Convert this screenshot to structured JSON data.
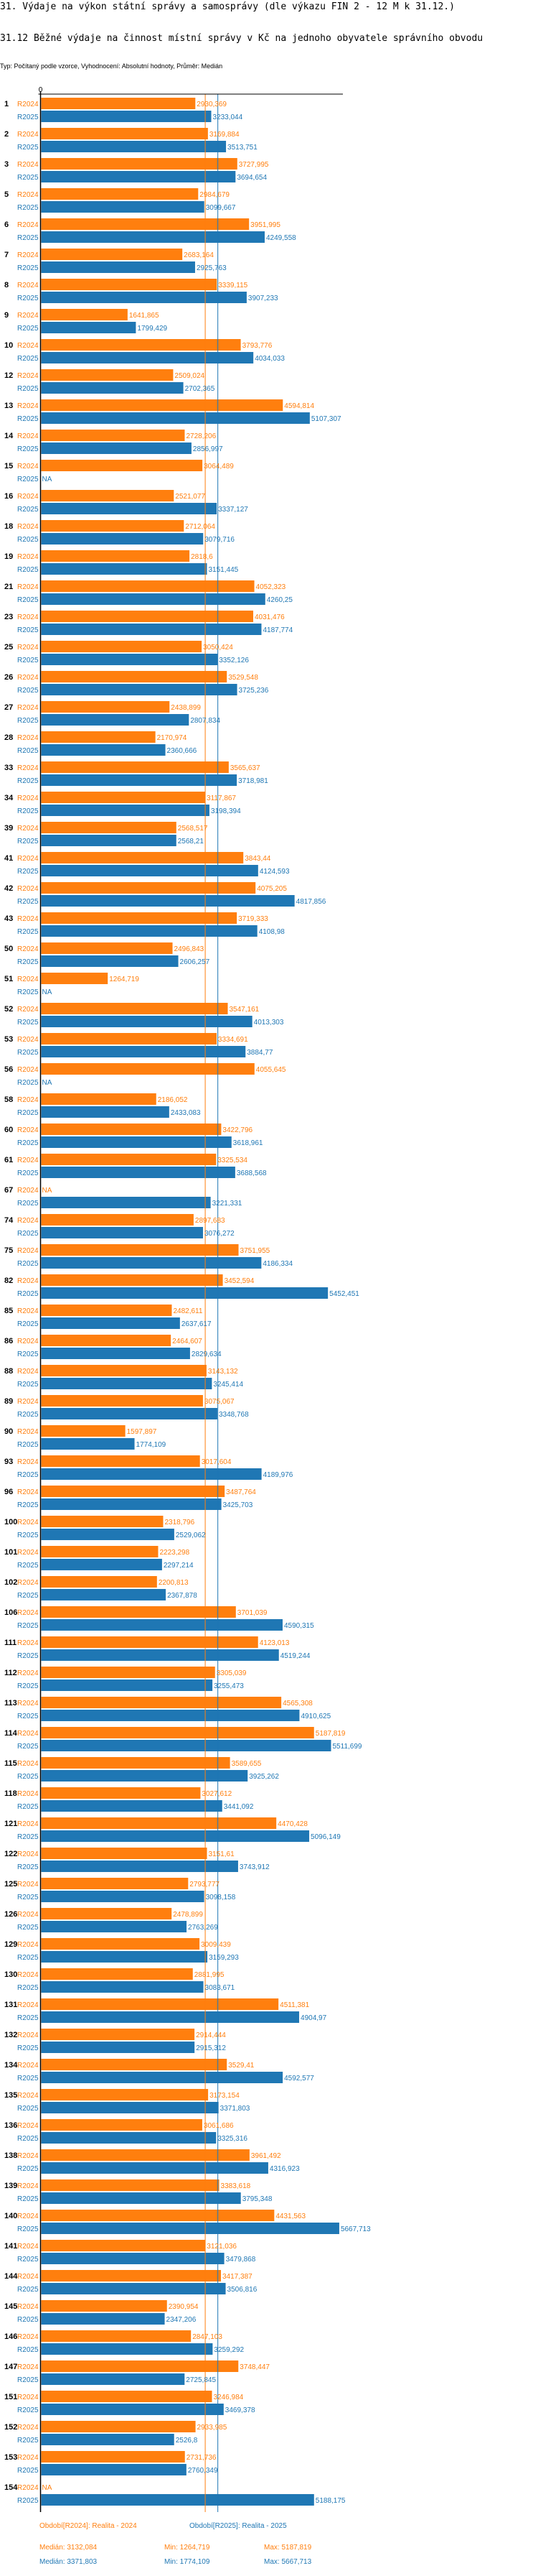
{
  "header": {
    "title": "31. Výdaje na výkon státní správy a samosprávy (dle výkazu FIN 2 - 12 M k 31.12.)",
    "subtitle": "31.12 Běžné výdaje na činnost místní správy v Kč na jednoho obyvatele správního obvodu",
    "meta": "Typ: Počítaný podle vzorce, Vyhodnocení: Absolutní hodnoty, Průměr: Medián"
  },
  "chart_data": {
    "type": "bar",
    "orientation": "horizontal",
    "title": "31.12 Běžné výdaje na činnost místní správy v Kč na jednoho obyvatele správního obvodu",
    "xlabel": "",
    "ylabel": "",
    "x_tick_labels": [
      "0"
    ],
    "xlim": [
      0,
      5867
    ],
    "grid": false,
    "legend_placement": "bottom",
    "colors": {
      "R2024": "#ff7f0e",
      "R2025": "#1f77b4"
    },
    "series_names": [
      "R2024",
      "R2025"
    ],
    "na_label": "NA",
    "categories": [
      "1",
      "2",
      "3",
      "5",
      "6",
      "7",
      "8",
      "9",
      "10",
      "12",
      "13",
      "14",
      "15",
      "16",
      "18",
      "19",
      "21",
      "23",
      "25",
      "26",
      "27",
      "28",
      "33",
      "34",
      "39",
      "41",
      "42",
      "43",
      "50",
      "51",
      "52",
      "53",
      "56",
      "58",
      "60",
      "61",
      "67",
      "74",
      "75",
      "82",
      "85",
      "86",
      "88",
      "89",
      "90",
      "93",
      "96",
      "100",
      "101",
      "102",
      "106",
      "111",
      "112",
      "113",
      "114",
      "115",
      "118",
      "121",
      "122",
      "125",
      "126",
      "129",
      "130",
      "131",
      "132",
      "134",
      "135",
      "136",
      "138",
      "139",
      "140",
      "141",
      "144",
      "145",
      "146",
      "147",
      "151",
      "152",
      "153",
      "154"
    ],
    "series": [
      {
        "name": "R2024",
        "labels": [
          "2930,369",
          "3169,884",
          "3727,995",
          "2984,679",
          "3951,995",
          "2683,164",
          "3339,115",
          "1641,865",
          "3793,776",
          "2509,024",
          "4594,814",
          "2728,206",
          "3064,489",
          "2521,077",
          "2712,064",
          "2818,6",
          "4052,323",
          "4031,476",
          "3050,424",
          "3529,548",
          "2438,899",
          "2170,974",
          "3565,637",
          "3117,867",
          "2568,517",
          "3843,44",
          "4075,205",
          "3719,333",
          "2496,843",
          "1264,719",
          "3547,161",
          "3334,691",
          "4055,645",
          "2186,052",
          "3422,796",
          "3325,534",
          "NA",
          "2897,683",
          "3751,955",
          "3452,594",
          "2482,611",
          "2464,607",
          "3143,132",
          "3075,067",
          "1597,897",
          "3017,604",
          "3487,764",
          "2318,796",
          "2223,298",
          "2200,813",
          "3701,039",
          "4123,013",
          "3305,039",
          "4565,308",
          "5187,819",
          "3589,655",
          "3027,612",
          "4470,428",
          "3151,61",
          "2793,777",
          "2478,899",
          "3009,439",
          "2881,995",
          "4511,381",
          "2914,444",
          "3529,41",
          "3173,154",
          "3061,686",
          "3961,492",
          "3383,618",
          "4431,563",
          "3121,036",
          "3417,387",
          "2390,954",
          "2847,103",
          "3748,447",
          "3246,984",
          "2933,985",
          "2731,736",
          "NA"
        ]
      },
      {
        "name": "R2025",
        "labels": [
          "3233,044",
          "3513,751",
          "3694,654",
          "3099,667",
          "4249,558",
          "2925,763",
          "3907,233",
          "1799,429",
          "4034,033",
          "2702,365",
          "5107,307",
          "2856,997",
          "NA",
          "3337,127",
          "3079,716",
          "3151,445",
          "4260,25",
          "4187,774",
          "3352,126",
          "3725,236",
          "2807,834",
          "2360,666",
          "3718,981",
          "3198,394",
          "2568,21",
          "4124,593",
          "4817,856",
          "4108,98",
          "2606,257",
          "NA",
          "4013,303",
          "3884,77",
          "NA",
          "2433,083",
          "3618,961",
          "3688,568",
          "3221,331",
          "3076,272",
          "4186,334",
          "5452,451",
          "2637,617",
          "2829,634",
          "3245,414",
          "3348,768",
          "1774,109",
          "4189,976",
          "3425,703",
          "2529,062",
          "2297,214",
          "2367,878",
          "4590,315",
          "4519,244",
          "3255,473",
          "4910,625",
          "5511,699",
          "3925,262",
          "3441,092",
          "5096,149",
          "3743,912",
          "3098,158",
          "2763,269",
          "3159,293",
          "3083,671",
          "4904,97",
          "2915,312",
          "4592,577",
          "3371,803",
          "3325,316",
          "4316,923",
          "3795,348",
          "5667,713",
          "3479,868",
          "3506,816",
          "2347,206",
          "3259,292",
          "2725,845",
          "3469,378",
          "2526,8",
          "2760,349",
          "5188,175"
        ]
      }
    ],
    "reference_lines": [
      {
        "series": "R2024",
        "type": "median",
        "value": 3132.084
      },
      {
        "series": "R2025",
        "type": "median",
        "value": 3371.803
      }
    ]
  },
  "legend": {
    "r2024": "Období[R2024]: Realita - 2024",
    "r2025": "Období[R2025]: Realita - 2025"
  },
  "stats": {
    "r2024": {
      "median": "Medián: 3132,084",
      "min": "Min: 1264,719",
      "max": "Max: 5187,819"
    },
    "r2025": {
      "median": "Medián: 3371,803",
      "min": "Min: 1774,109",
      "max": "Max: 5667,713"
    }
  }
}
